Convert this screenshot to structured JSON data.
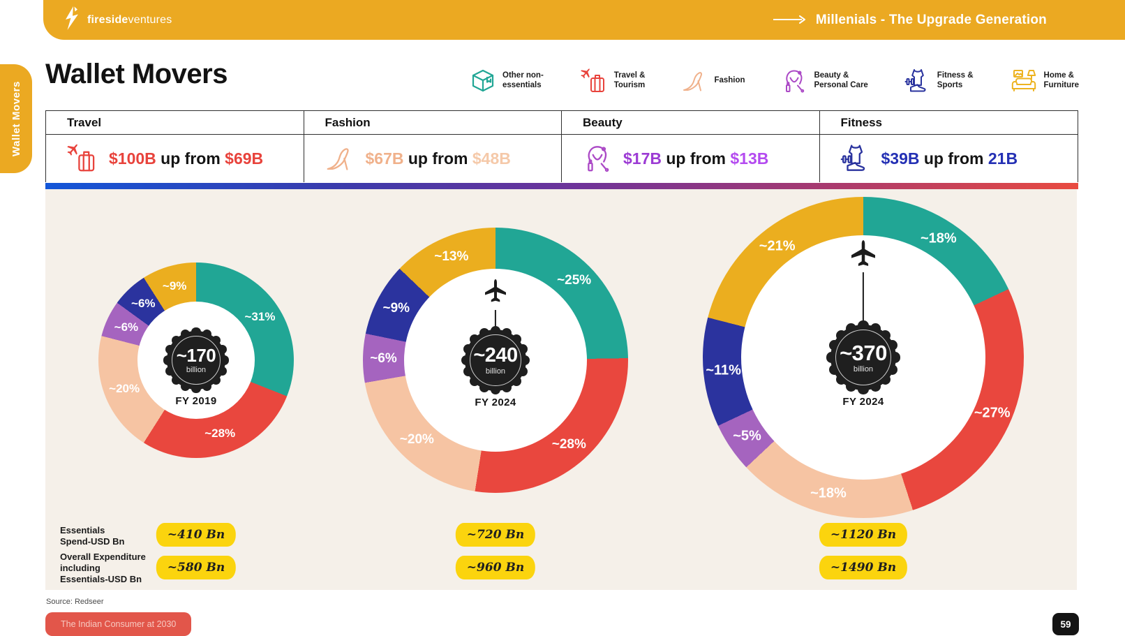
{
  "header": {
    "brand_bold": "fireside",
    "brand_light": "ventures",
    "tagline": "Millenials - The Upgrade Generation"
  },
  "side_tab": {
    "label": "Wallet Movers"
  },
  "page_title": "Wallet Movers",
  "legend": {
    "items": [
      {
        "icon": "box-icon",
        "line1": "Other non-",
        "line2": "essentials",
        "color": "#21A695"
      },
      {
        "icon": "travel-icon",
        "line1": "Travel &",
        "line2": "Tourism",
        "color": "#E8433C"
      },
      {
        "icon": "fashion-icon",
        "line1": "Fashion",
        "line2": "",
        "color": "#F0B18B"
      },
      {
        "icon": "beauty-icon",
        "line1": "Beauty &",
        "line2": "Personal Care",
        "color": "#AB49C6"
      },
      {
        "icon": "fitness-icon",
        "line1": "Fitness &",
        "line2": "Sports",
        "color": "#2A339E"
      },
      {
        "icon": "home-icon",
        "line1": "Home &",
        "line2": "Furniture",
        "color": "#EDB320"
      }
    ]
  },
  "summary_table": {
    "columns": [
      {
        "header": "Travel",
        "icon": "travel-icon",
        "amount": "$100B",
        "mid": "up from",
        "previous": "$69B",
        "amount_color": "#E8433C",
        "previous_color": "#E8433C"
      },
      {
        "header": "Fashion",
        "icon": "fashion-icon",
        "amount": "$67B",
        "mid": "up from",
        "previous": "$48B",
        "amount_color": "#F0B18B",
        "previous_color": "#F5C9A9"
      },
      {
        "header": "Beauty",
        "icon": "beauty-icon",
        "amount": "$17B",
        "mid": "up from",
        "previous": "$13B",
        "amount_color": "#9C3BD4",
        "previous_color": "#B44BF0"
      },
      {
        "header": "Fitness",
        "icon": "fitness-icon",
        "amount": "$39B",
        "mid": "up from",
        "previous": "21B",
        "amount_color": "#2430B4",
        "previous_color": "#2430B4"
      }
    ]
  },
  "chart_data": [
    {
      "type": "donut",
      "period": "FY 2019",
      "center_value": "~170",
      "center_unit": "billion",
      "essentials_spend": "~410 Bn",
      "overall_expenditure": "~580 Bn",
      "segments": [
        {
          "category": "Other non-essentials",
          "label": "~31%",
          "value": 31,
          "color": "#21A695"
        },
        {
          "category": "Travel & Tourism",
          "label": "~28%",
          "value": 28,
          "color": "#E9473E"
        },
        {
          "category": "Fashion",
          "label": "~20%",
          "value": 20,
          "color": "#F6C4A3"
        },
        {
          "category": "Beauty & Personal Care",
          "label": "~6%",
          "value": 6,
          "color": "#A564BF"
        },
        {
          "category": "Fitness & Sports",
          "label": "~6%",
          "value": 6,
          "color": "#2B339E"
        },
        {
          "category": "Home & Furniture",
          "label": "~9%",
          "value": 9,
          "color": "#EBAE1F"
        }
      ]
    },
    {
      "type": "donut",
      "period": "FY 2024",
      "center_value": "~240",
      "center_unit": "billion",
      "essentials_spend": "~720 Bn",
      "overall_expenditure": "~960 Bn",
      "segments": [
        {
          "category": "Other non-essentials",
          "label": "~25%",
          "value": 25,
          "color": "#21A695"
        },
        {
          "category": "Travel & Tourism",
          "label": "~28%",
          "value": 28,
          "color": "#E9473E"
        },
        {
          "category": "Fashion",
          "label": "~20%",
          "value": 20,
          "color": "#F6C4A3"
        },
        {
          "category": "Beauty & Personal Care",
          "label": "~6%",
          "value": 6,
          "color": "#A564BF"
        },
        {
          "category": "Fitness & Sports",
          "label": "~9%",
          "value": 9,
          "color": "#2B339E"
        },
        {
          "category": "Home & Furniture",
          "label": "~13%",
          "value": 13,
          "color": "#EBAE1F"
        }
      ]
    },
    {
      "type": "donut",
      "period": "FY 2024",
      "center_value": "~370",
      "center_unit": "billion",
      "essentials_spend": "~1120 Bn",
      "overall_expenditure": "~1490 Bn",
      "segments": [
        {
          "category": "Other non-essentials",
          "label": "~18%",
          "value": 18,
          "color": "#21A695"
        },
        {
          "category": "Travel & Tourism",
          "label": "~27%",
          "value": 27,
          "color": "#E9473E"
        },
        {
          "category": "Fashion",
          "label": "~18%",
          "value": 18,
          "color": "#F6C4A3"
        },
        {
          "category": "Beauty & Personal Care",
          "label": "~5%",
          "value": 5,
          "color": "#A564BF"
        },
        {
          "category": "Fitness & Sports",
          "label": "~11%",
          "value": 11,
          "color": "#2B339E"
        },
        {
          "category": "Home & Furniture",
          "label": "~21%",
          "value": 21,
          "color": "#EBAE1F"
        }
      ]
    }
  ],
  "bottom": {
    "rows": [
      {
        "label": "Essentials\nSpend-USD Bn",
        "values": [
          "~410 Bn",
          "~720 Bn",
          "~1120 Bn"
        ]
      },
      {
        "label": "Overall Expenditure\nincluding\nEssentials-USD Bn",
        "values": [
          "~580 Bn",
          "~960 Bn",
          "~1490 Bn"
        ]
      }
    ],
    "badge_color": "#FBD40E"
  },
  "footer": {
    "source": "Source: Redseer",
    "deck_badge": "The Indian Consumer at 2030",
    "page_number": "59"
  }
}
